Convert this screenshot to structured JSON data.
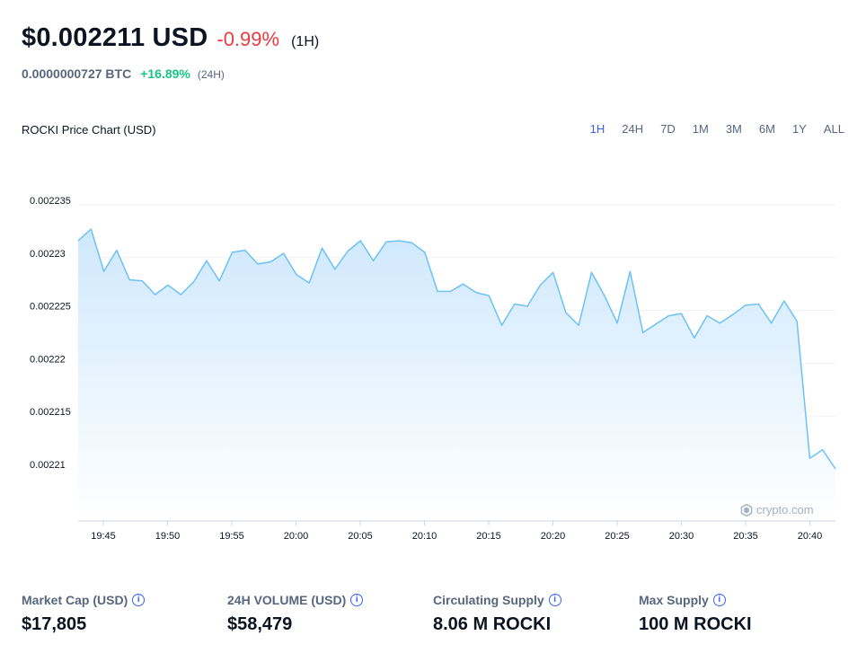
{
  "header": {
    "price": "$0.002211 USD",
    "change": "-0.99%",
    "period": "(1H)",
    "btc_price": "0.0000000727 BTC",
    "btc_change": "+16.89%",
    "btc_period": "(24H)"
  },
  "chart_header": {
    "title": "ROCKI Price Chart (USD)",
    "ranges": [
      "1H",
      "24H",
      "7D",
      "1M",
      "3M",
      "6M",
      "1Y",
      "ALL"
    ],
    "active_range": "1H"
  },
  "watermark": "crypto.com",
  "colors": {
    "line": "#6cc1f5",
    "fill_top": "#cfe8fd",
    "negative": "#ea3943",
    "positive": "#16c784",
    "accent": "#3861fb"
  },
  "chart_data": {
    "type": "area",
    "title": "ROCKI Price Chart (USD)",
    "xlabel": "",
    "ylabel": "",
    "x_ticks": [
      "19:45",
      "19:50",
      "19:55",
      "20:00",
      "20:05",
      "20:10",
      "20:15",
      "20:20",
      "20:25",
      "20:30",
      "20:35",
      "20:40"
    ],
    "y_ticks": [
      "0.002235",
      "0.00223",
      "0.002225",
      "0.00222",
      "0.002215",
      "0.00221"
    ],
    "ylim": [
      0.002205,
      0.002238
    ],
    "grid": true,
    "series": [
      {
        "values": [
          0.0022316,
          0.0022327,
          0.0022287,
          0.0022307,
          0.0022279,
          0.0022278,
          0.0022265,
          0.0022274,
          0.0022265,
          0.0022277,
          0.0022297,
          0.0022278,
          0.0022305,
          0.0022307,
          0.0022294,
          0.0022296,
          0.0022304,
          0.0022284,
          0.0022276,
          0.0022309,
          0.0022289,
          0.0022306,
          0.0022316,
          0.0022297,
          0.0022315,
          0.0022316,
          0.0022314,
          0.0022305,
          0.0022268,
          0.0022268,
          0.0022275,
          0.0022267,
          0.0022264,
          0.0022236,
          0.0022256,
          0.0022254,
          0.0022274,
          0.0022286,
          0.0022248,
          0.0022236,
          0.0022286,
          0.0022264,
          0.0022238,
          0.0022287,
          0.0022229,
          0.0022237,
          0.0022245,
          0.0022247,
          0.0022224,
          0.0022245,
          0.0022238,
          0.0022246,
          0.0022255,
          0.0022256,
          0.0022238,
          0.0022259,
          0.002224,
          0.002211,
          0.0022118,
          0.00221
        ]
      }
    ]
  },
  "stats": [
    {
      "label": "Market Cap (USD)",
      "value": "$17,805"
    },
    {
      "label": "24H VOLUME (USD)",
      "value": "$58,479"
    },
    {
      "label": "Circulating Supply",
      "value": "8.06 M ROCKI"
    },
    {
      "label": "Max Supply",
      "value": "100 M ROCKI"
    }
  ]
}
